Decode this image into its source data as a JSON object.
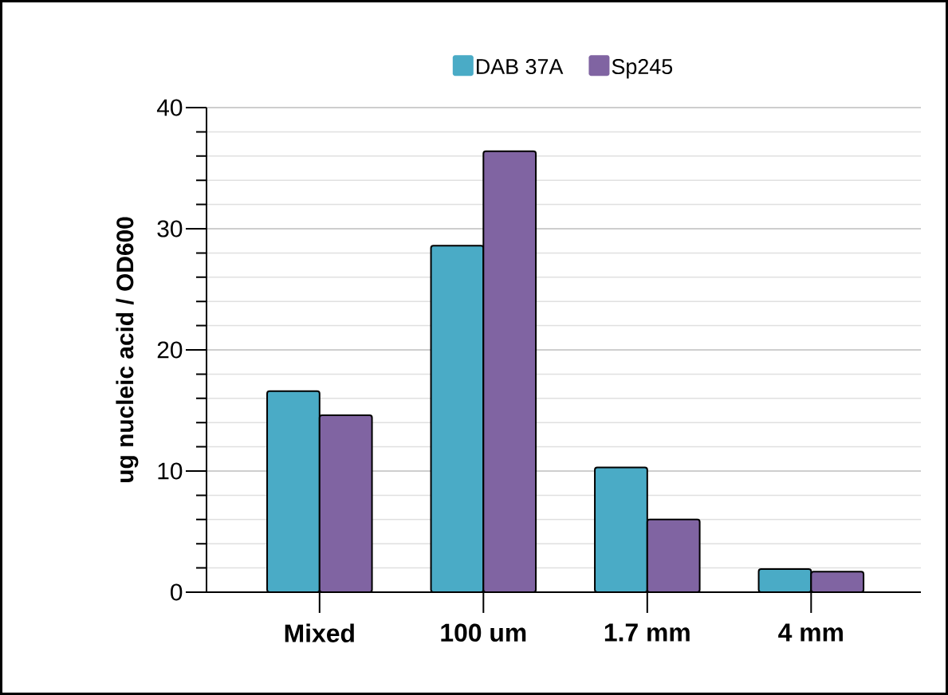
{
  "chart_data": {
    "type": "bar",
    "ylabel": "ug nucleic acid / OD600",
    "categories": [
      "Mixed",
      "100 um",
      "1.7 mm",
      "4 mm"
    ],
    "series": [
      {
        "name": "DAB 37A",
        "color": "#4aabc6",
        "values": [
          16.6,
          28.6,
          10.3,
          1.9
        ]
      },
      {
        "name": "Sp245",
        "color": "#8064a2",
        "values": [
          14.6,
          36.4,
          6.0,
          1.7
        ]
      }
    ],
    "ylim": [
      0,
      40
    ],
    "yticks": [
      0,
      {
        "value": 2,
        "label": null
      },
      {
        "value": 4,
        "label": null
      },
      {
        "value": 6,
        "label": null
      },
      {
        "value": 8,
        "label": null
      },
      10,
      {
        "value": 12,
        "label": null
      },
      {
        "value": 14,
        "label": null
      },
      {
        "value": 16,
        "label": null
      },
      {
        "value": 18,
        "label": null
      },
      20,
      {
        "value": 22,
        "label": null
      },
      {
        "value": 24,
        "label": null
      },
      {
        "value": 26,
        "label": null
      },
      {
        "value": 28,
        "label": null
      },
      30,
      {
        "value": 32,
        "label": null
      },
      {
        "value": 34,
        "label": null
      },
      {
        "value": 36,
        "label": null
      },
      {
        "value": 38,
        "label": null
      },
      40
    ],
    "grid": "y",
    "legend": "top"
  }
}
